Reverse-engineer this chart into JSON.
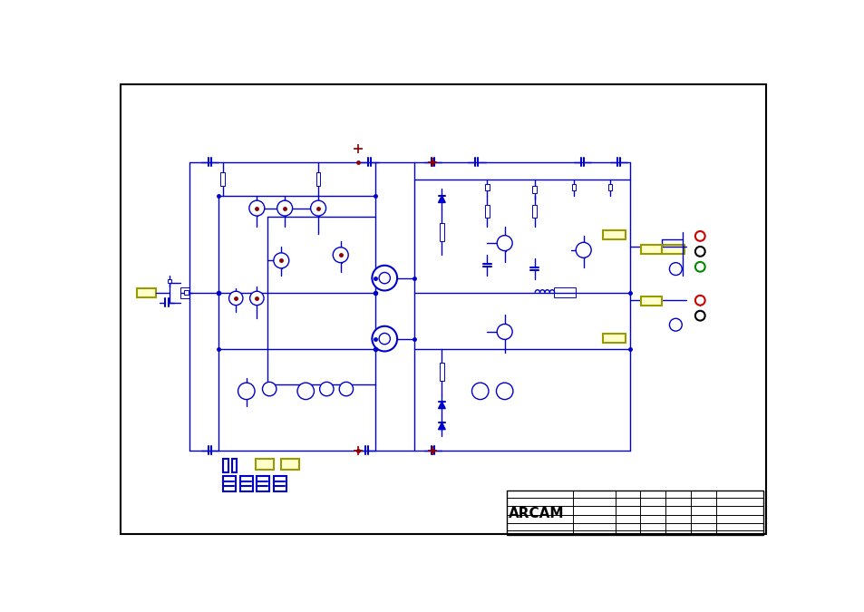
{
  "blue": "#0000cc",
  "navy": "#000080",
  "red": "#cc0000",
  "dark_red": "#8b0000",
  "yellow_fill": "#ffffcc",
  "yellow_border": "#999900",
  "green": "#008800",
  "black": "#000000",
  "arcam_text": "ARCAM",
  "figsize": [
    9.54,
    6.75
  ],
  "dpi": 100
}
